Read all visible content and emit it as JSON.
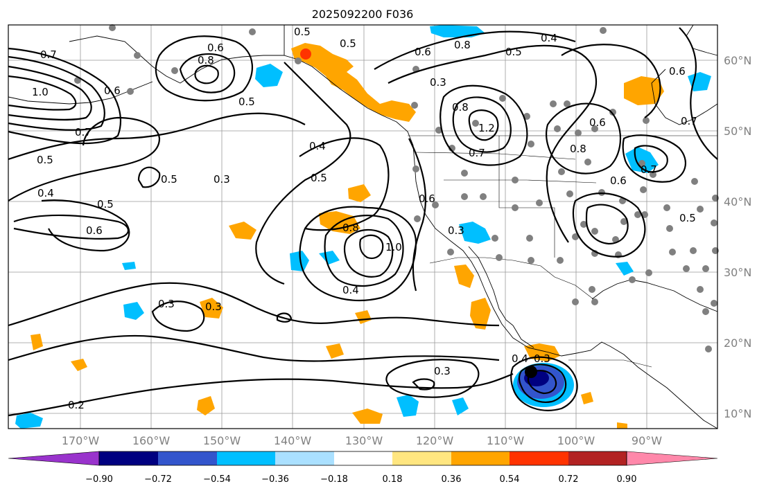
{
  "title": "2025092200 F036",
  "latitude_labels": [
    "60°N",
    "50°N",
    "40°N",
    "30°N",
    "20°N",
    "10°N"
  ],
  "longitude_labels": [
    "170°W",
    "160°W",
    "150°W",
    "140°W",
    "130°W",
    "120°W",
    "110°W",
    "100°W",
    "90°W"
  ],
  "colorbar": {
    "tick_labels": [
      "−0.90",
      "−0.72",
      "−0.54",
      "−0.36",
      "−0.18",
      "0.18",
      "0.36",
      "0.54",
      "0.72",
      "0.90"
    ],
    "colors": [
      "#9933cc",
      "#000080",
      "#3355cc",
      "#00bfff",
      "#aae0ff",
      "#ffffff",
      "#ffe680",
      "#ffa500",
      "#ff3300",
      "#b22222",
      "#ff88aa"
    ]
  },
  "contour_labels": [
    "0.5",
    "0.6",
    "0.8",
    "0.7",
    "0.5",
    "0.4",
    "1.0",
    "0.6",
    "0.6",
    "0.8",
    "0.5",
    "0.5",
    "0.3",
    "0.6",
    "0.8",
    "0.7",
    "0.7",
    "0.5",
    "0.6",
    "0.4",
    "0.5",
    "0.4",
    "0.3",
    "0.5",
    "0.5",
    "0.6",
    "0.6",
    "0.8",
    "0.8",
    "1.0",
    "0.3",
    "0.4",
    "0.3",
    "0.3",
    "0.3",
    "0.4",
    "0.3",
    "0.2",
    "0.7",
    "0.6",
    "1.2",
    "0.7",
    "0.5"
  ],
  "colors": {
    "positive_anomaly": "#ffa500",
    "negative_anomaly": "#00bfff",
    "storm_center": "#000000",
    "station_marker": "#808080"
  }
}
